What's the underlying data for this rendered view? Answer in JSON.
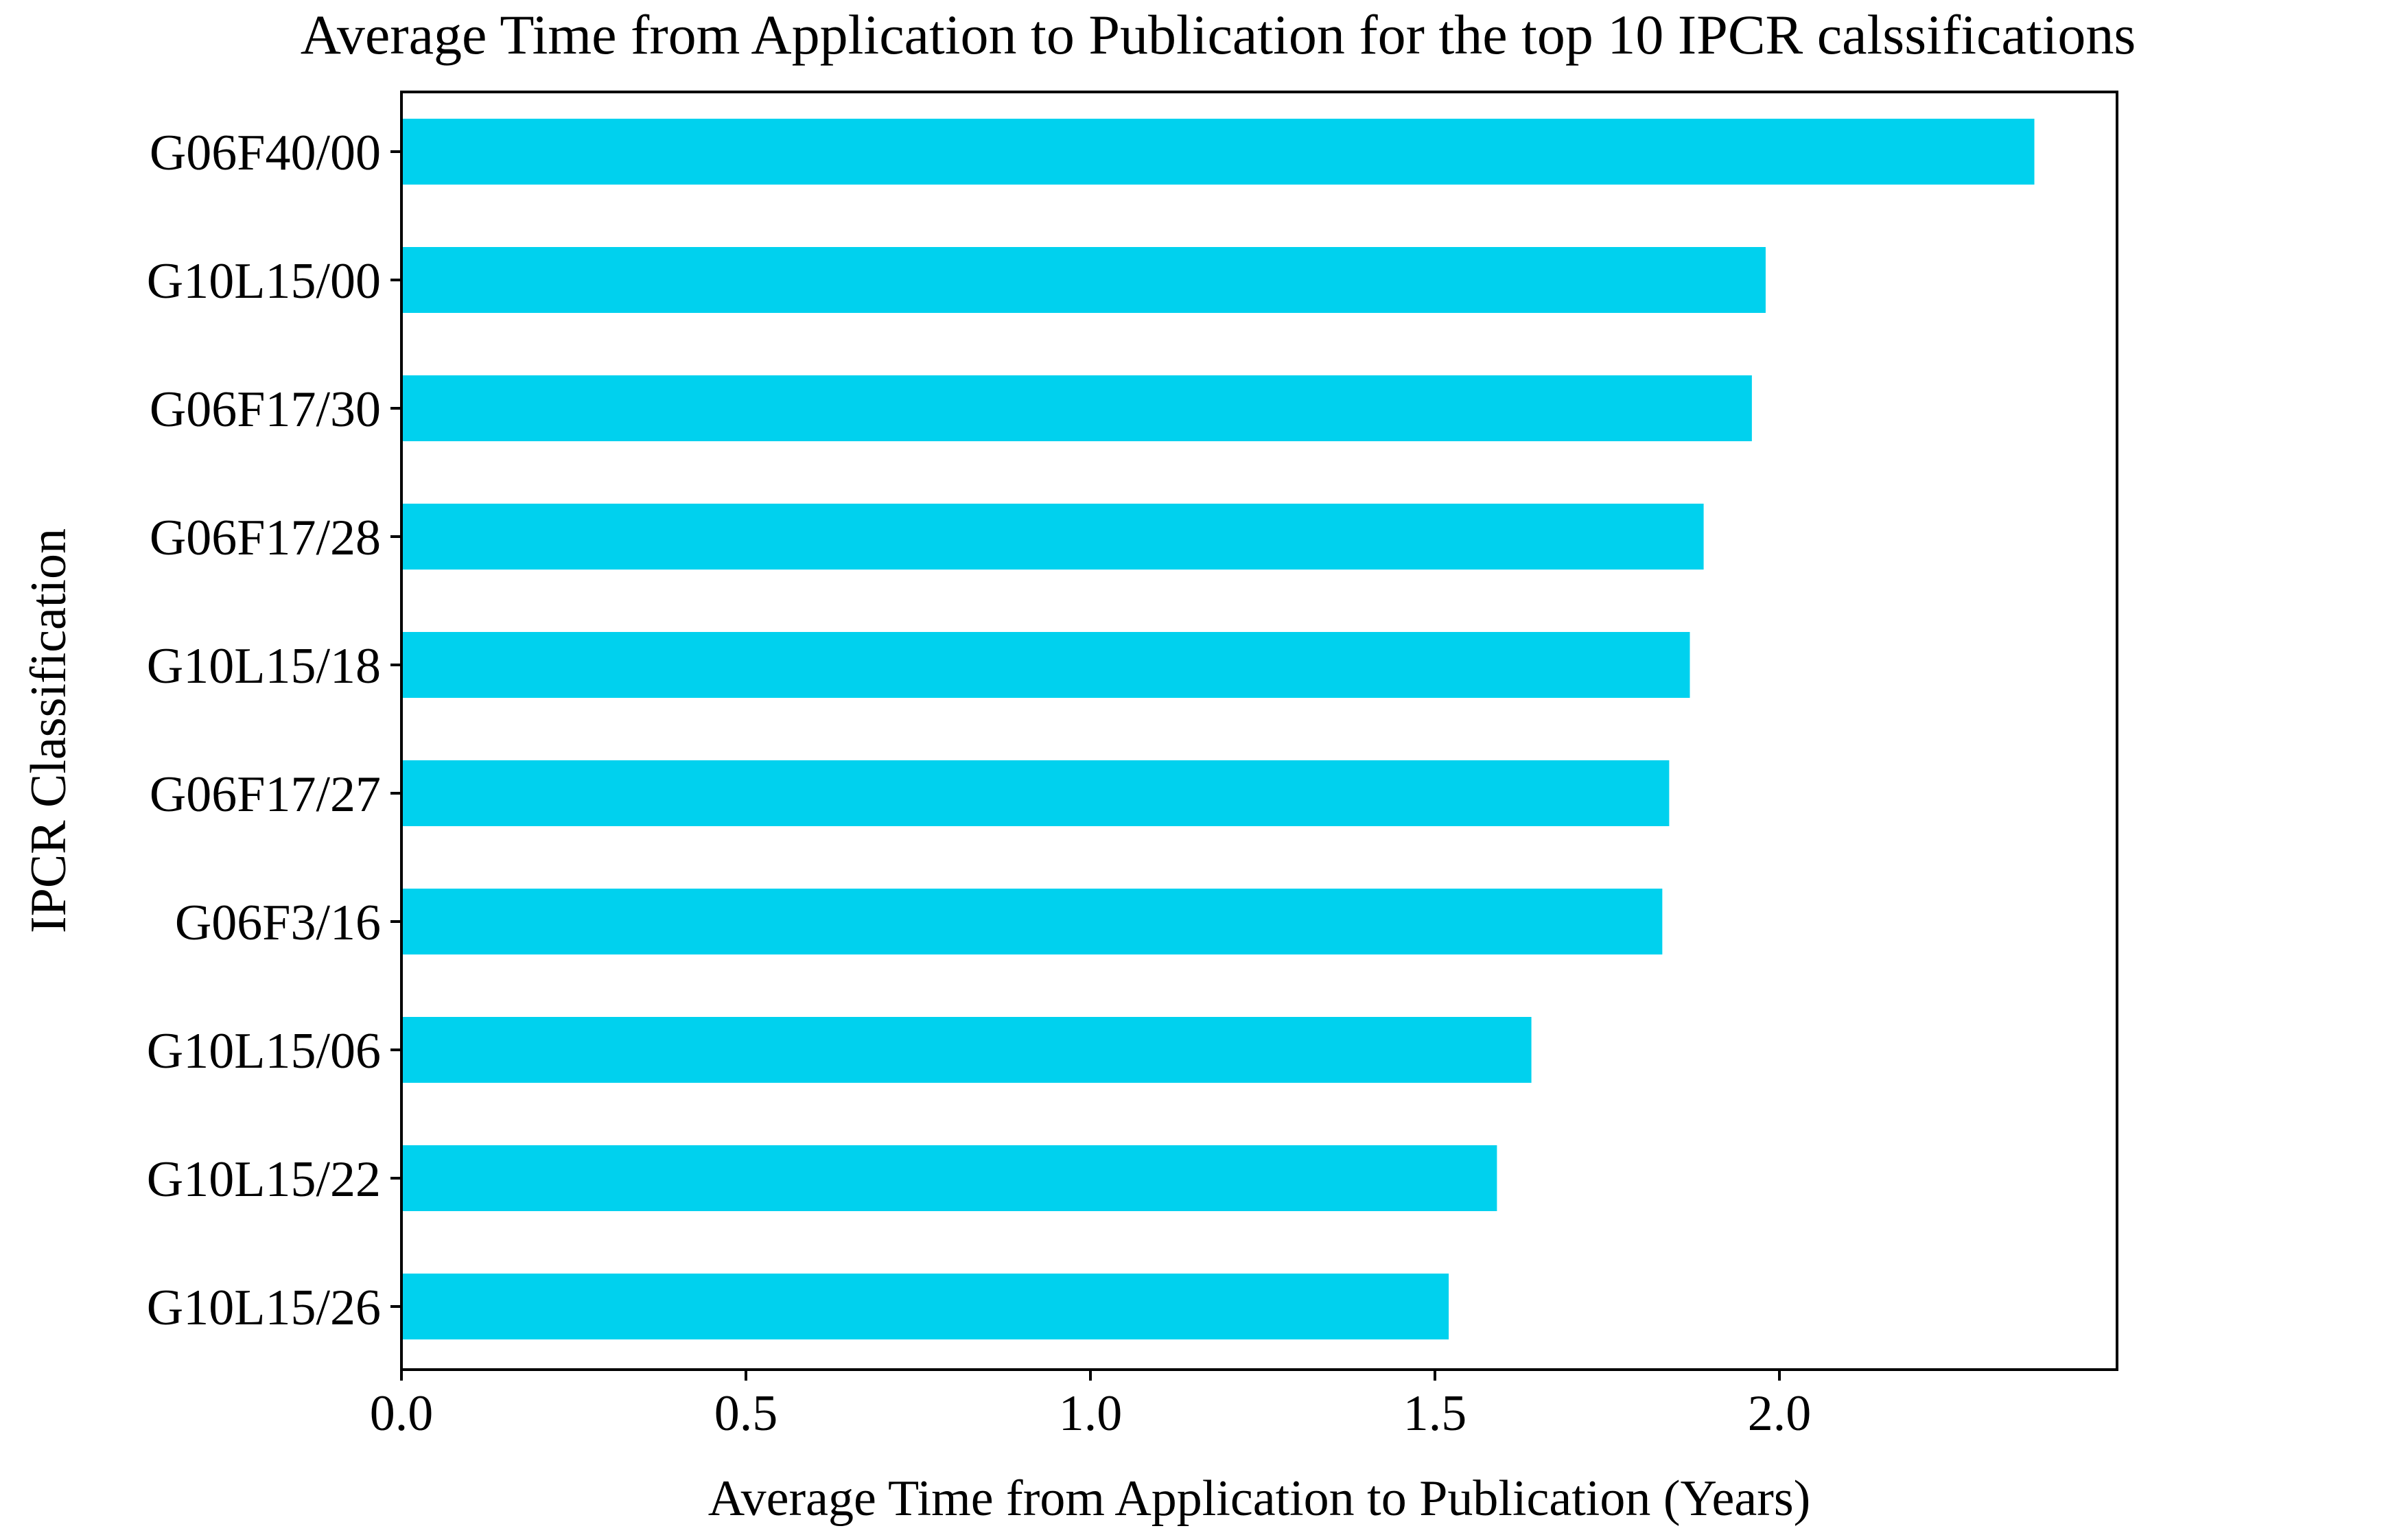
{
  "chart_data": {
    "type": "bar",
    "orientation": "horizontal",
    "title": "Average Time from Application to Publication for the top 10 IPCR calssifications",
    "xlabel": "Average Time from Application to Publication (Years)",
    "ylabel": "IPCR Classification",
    "categories": [
      "G06F40/00",
      "G10L15/00",
      "G06F17/30",
      "G06F17/28",
      "G10L15/18",
      "G06F17/27",
      "G06F3/16",
      "G10L15/06",
      "G10L15/22",
      "G10L15/26"
    ],
    "values": [
      2.37,
      1.98,
      1.96,
      1.89,
      1.87,
      1.84,
      1.83,
      1.64,
      1.59,
      1.52
    ],
    "xlim": [
      0,
      2.49
    ],
    "x_ticks": [
      "0.0",
      "0.5",
      "1.0",
      "1.5",
      "2.0"
    ],
    "bar_color": "#00d1ee",
    "grid": false,
    "legend": "none"
  }
}
